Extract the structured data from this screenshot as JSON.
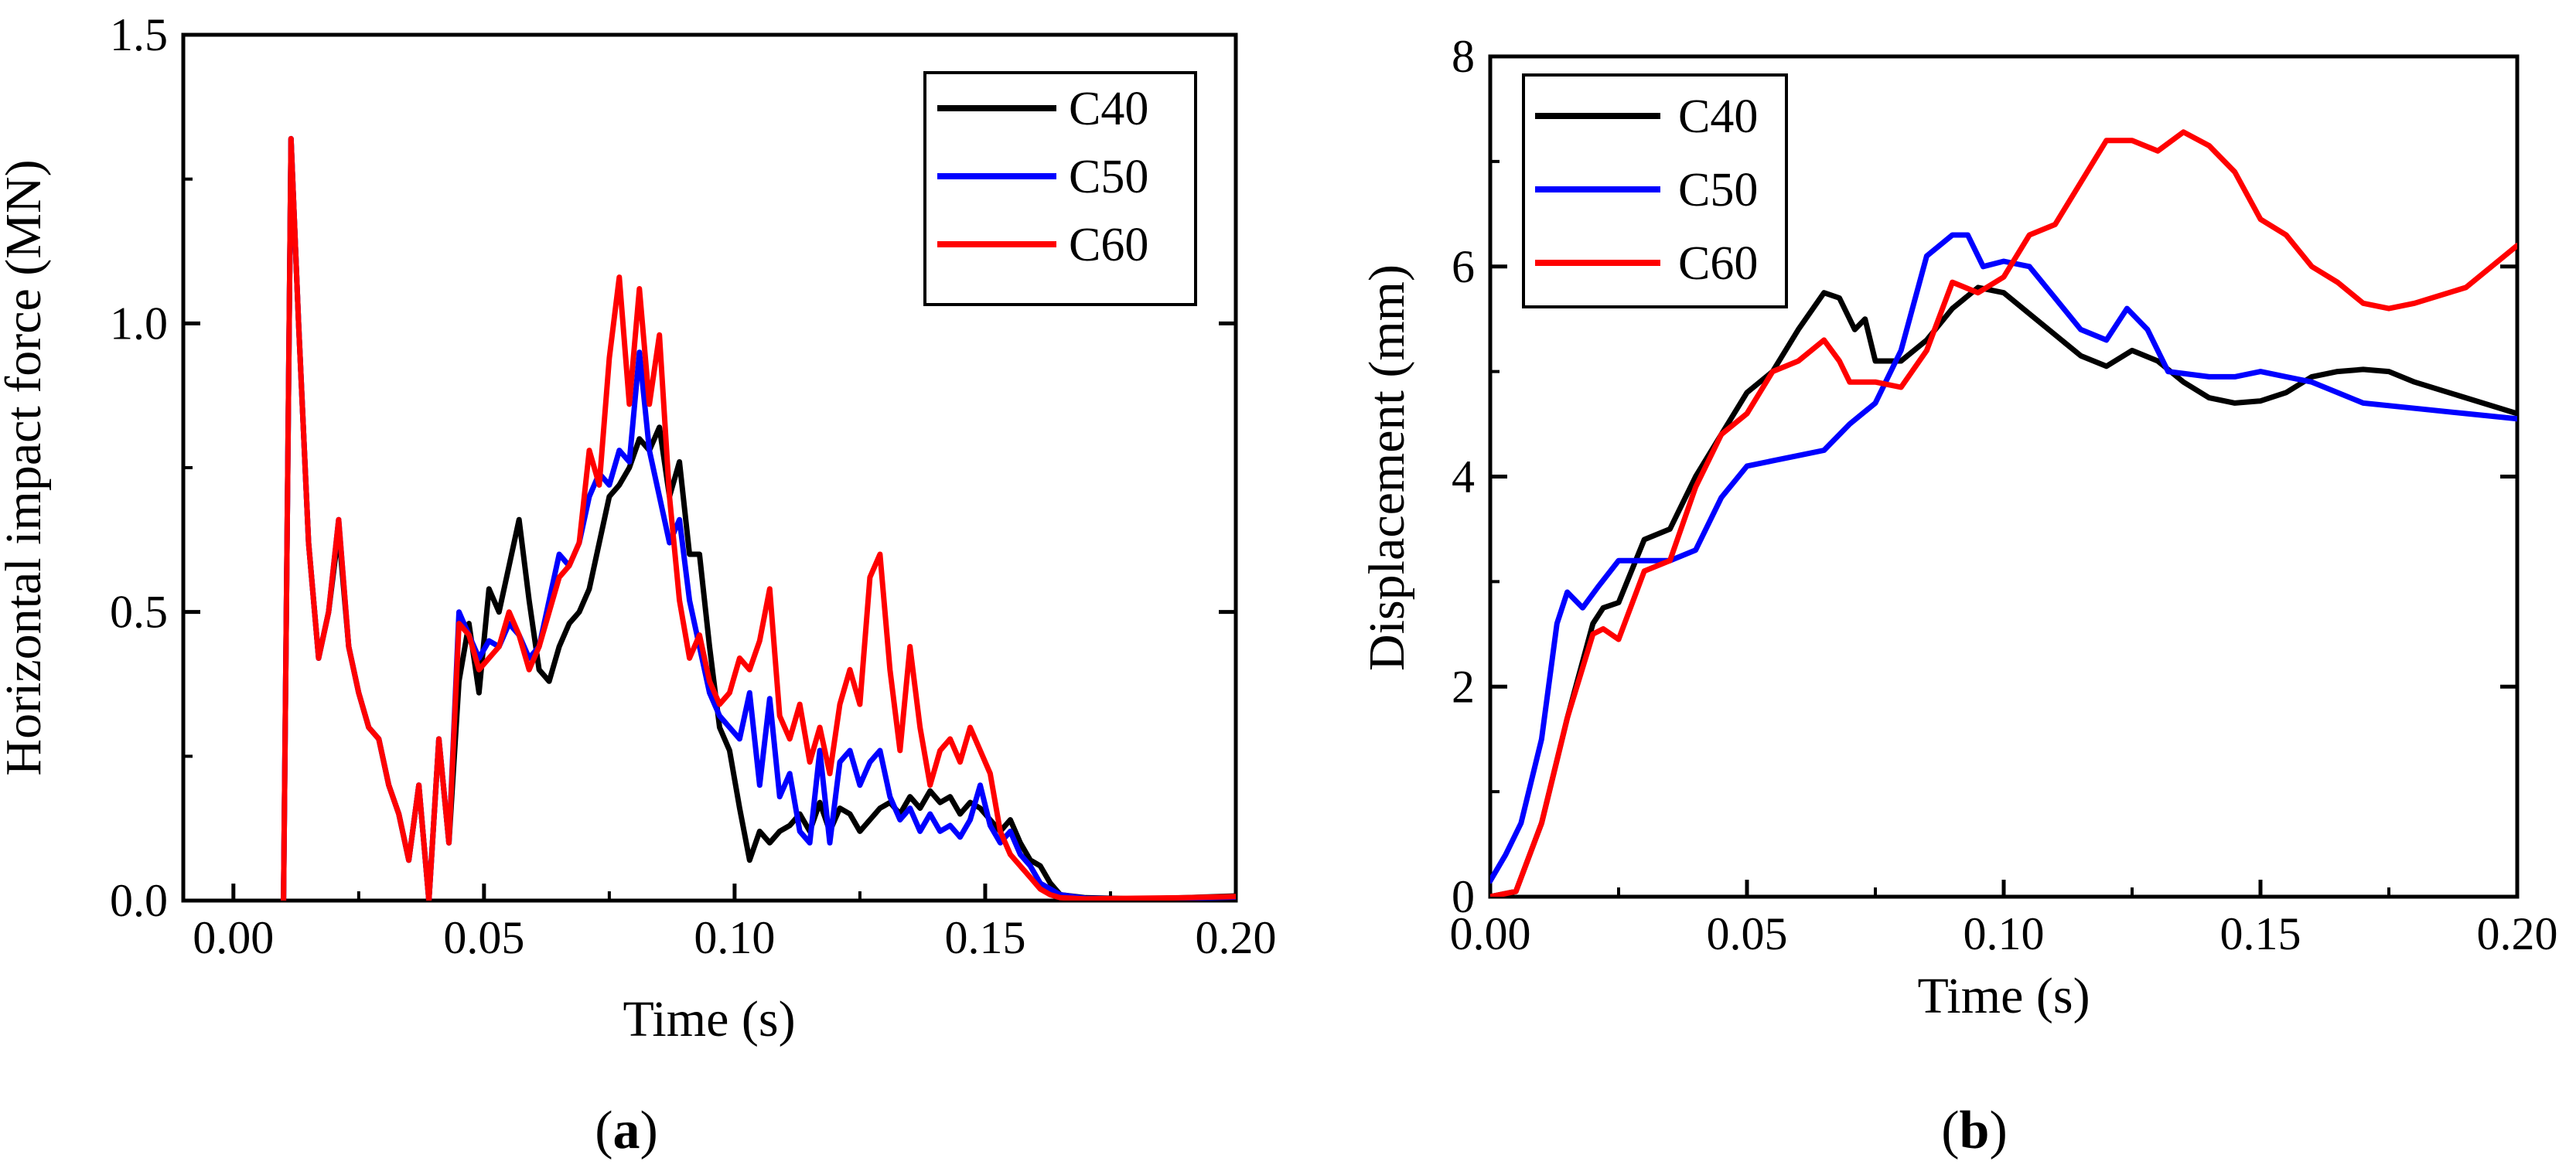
{
  "colors": {
    "C40": "#000000",
    "C50": "#0000ff",
    "C60": "#ff0000"
  },
  "chart_data": [
    {
      "type": "line",
      "panel_label": "(a)",
      "panel_letter": "a",
      "xlabel": "Time (s)",
      "ylabel": "Horizontal impact force (MN)",
      "xlim": [
        -0.01,
        0.2
      ],
      "ylim": [
        0,
        1.5
      ],
      "xticks": [
        "0.00",
        "0.05",
        "0.10",
        "0.15",
        "0.20"
      ],
      "yticks": [
        "0.0",
        "0.5",
        "1.0",
        "1.5"
      ],
      "grid": false,
      "legend_position": "top-right",
      "series": [
        {
          "name": "C40",
          "x": [
            0.01,
            0.0115,
            0.013,
            0.015,
            0.017,
            0.019,
            0.021,
            0.023,
            0.025,
            0.027,
            0.029,
            0.031,
            0.033,
            0.035,
            0.037,
            0.039,
            0.041,
            0.043,
            0.045,
            0.047,
            0.049,
            0.051,
            0.053,
            0.055,
            0.057,
            0.059,
            0.061,
            0.063,
            0.065,
            0.067,
            0.069,
            0.071,
            0.073,
            0.075,
            0.077,
            0.079,
            0.081,
            0.083,
            0.085,
            0.087,
            0.089,
            0.091,
            0.093,
            0.095,
            0.097,
            0.099,
            0.101,
            0.103,
            0.105,
            0.107,
            0.109,
            0.111,
            0.113,
            0.115,
            0.117,
            0.119,
            0.121,
            0.123,
            0.125,
            0.127,
            0.129,
            0.131,
            0.133,
            0.135,
            0.137,
            0.139,
            0.141,
            0.143,
            0.145,
            0.147,
            0.149,
            0.151,
            0.153,
            0.155,
            0.157,
            0.159,
            0.161,
            0.163,
            0.165,
            0.17,
            0.18,
            0.19,
            0.2
          ],
          "y": [
            0,
            1.32,
            1.0,
            0.62,
            0.42,
            0.5,
            0.64,
            0.44,
            0.36,
            0.3,
            0.28,
            0.2,
            0.15,
            0.07,
            0.2,
            0.0,
            0.28,
            0.1,
            0.38,
            0.48,
            0.36,
            0.54,
            0.5,
            0.58,
            0.66,
            0.52,
            0.4,
            0.38,
            0.44,
            0.48,
            0.5,
            0.54,
            0.62,
            0.7,
            0.72,
            0.75,
            0.8,
            0.78,
            0.82,
            0.7,
            0.76,
            0.6,
            0.6,
            0.44,
            0.3,
            0.26,
            0.16,
            0.07,
            0.12,
            0.1,
            0.12,
            0.13,
            0.15,
            0.12,
            0.17,
            0.12,
            0.16,
            0.15,
            0.12,
            0.14,
            0.16,
            0.17,
            0.15,
            0.18,
            0.16,
            0.19,
            0.17,
            0.18,
            0.15,
            0.17,
            0.16,
            0.14,
            0.12,
            0.14,
            0.1,
            0.07,
            0.06,
            0.03,
            0.01,
            0.005,
            0.003,
            0.005,
            0.008
          ]
        },
        {
          "name": "C50",
          "x": [
            0.01,
            0.0115,
            0.013,
            0.015,
            0.017,
            0.019,
            0.021,
            0.023,
            0.025,
            0.027,
            0.029,
            0.031,
            0.033,
            0.035,
            0.037,
            0.039,
            0.041,
            0.043,
            0.045,
            0.047,
            0.049,
            0.051,
            0.053,
            0.055,
            0.057,
            0.059,
            0.061,
            0.063,
            0.065,
            0.067,
            0.069,
            0.071,
            0.073,
            0.075,
            0.077,
            0.079,
            0.081,
            0.083,
            0.085,
            0.087,
            0.089,
            0.091,
            0.093,
            0.095,
            0.097,
            0.099,
            0.101,
            0.103,
            0.105,
            0.107,
            0.109,
            0.111,
            0.113,
            0.115,
            0.117,
            0.119,
            0.121,
            0.123,
            0.125,
            0.127,
            0.129,
            0.131,
            0.133,
            0.135,
            0.137,
            0.139,
            0.141,
            0.143,
            0.145,
            0.147,
            0.149,
            0.151,
            0.153,
            0.155,
            0.157,
            0.159,
            0.161,
            0.163,
            0.165,
            0.17,
            0.18,
            0.19,
            0.2
          ],
          "y": [
            0,
            1.32,
            1.0,
            0.62,
            0.42,
            0.5,
            0.66,
            0.44,
            0.36,
            0.3,
            0.28,
            0.2,
            0.15,
            0.07,
            0.2,
            0.0,
            0.28,
            0.1,
            0.5,
            0.46,
            0.42,
            0.45,
            0.44,
            0.48,
            0.46,
            0.42,
            0.44,
            0.52,
            0.6,
            0.58,
            0.62,
            0.7,
            0.74,
            0.72,
            0.78,
            0.76,
            0.95,
            0.78,
            0.7,
            0.62,
            0.66,
            0.52,
            0.44,
            0.36,
            0.32,
            0.3,
            0.28,
            0.36,
            0.2,
            0.35,
            0.18,
            0.22,
            0.12,
            0.1,
            0.26,
            0.1,
            0.24,
            0.26,
            0.2,
            0.24,
            0.26,
            0.18,
            0.14,
            0.16,
            0.12,
            0.15,
            0.12,
            0.13,
            0.11,
            0.14,
            0.2,
            0.13,
            0.1,
            0.12,
            0.08,
            0.06,
            0.03,
            0.02,
            0.01,
            0.004,
            0.003,
            0.004,
            0.006
          ]
        },
        {
          "name": "C60",
          "x": [
            0.01,
            0.0115,
            0.013,
            0.015,
            0.017,
            0.019,
            0.021,
            0.023,
            0.025,
            0.027,
            0.029,
            0.031,
            0.033,
            0.035,
            0.037,
            0.039,
            0.041,
            0.043,
            0.045,
            0.047,
            0.049,
            0.051,
            0.053,
            0.055,
            0.057,
            0.059,
            0.061,
            0.063,
            0.065,
            0.067,
            0.069,
            0.071,
            0.073,
            0.075,
            0.077,
            0.079,
            0.081,
            0.083,
            0.085,
            0.087,
            0.089,
            0.091,
            0.093,
            0.095,
            0.097,
            0.099,
            0.101,
            0.103,
            0.105,
            0.107,
            0.109,
            0.111,
            0.113,
            0.115,
            0.117,
            0.119,
            0.121,
            0.123,
            0.125,
            0.127,
            0.129,
            0.131,
            0.133,
            0.135,
            0.137,
            0.139,
            0.141,
            0.143,
            0.145,
            0.147,
            0.149,
            0.151,
            0.153,
            0.155,
            0.157,
            0.159,
            0.161,
            0.163,
            0.165,
            0.17,
            0.18,
            0.19,
            0.2
          ],
          "y": [
            0,
            1.32,
            1.0,
            0.62,
            0.42,
            0.5,
            0.66,
            0.44,
            0.36,
            0.3,
            0.28,
            0.2,
            0.15,
            0.07,
            0.2,
            0.0,
            0.28,
            0.1,
            0.48,
            0.46,
            0.4,
            0.42,
            0.44,
            0.5,
            0.46,
            0.4,
            0.44,
            0.5,
            0.56,
            0.58,
            0.62,
            0.78,
            0.72,
            0.94,
            1.08,
            0.86,
            1.06,
            0.86,
            0.98,
            0.7,
            0.52,
            0.42,
            0.46,
            0.38,
            0.34,
            0.36,
            0.42,
            0.4,
            0.45,
            0.54,
            0.32,
            0.28,
            0.34,
            0.24,
            0.3,
            0.22,
            0.34,
            0.4,
            0.34,
            0.56,
            0.6,
            0.4,
            0.26,
            0.44,
            0.3,
            0.2,
            0.26,
            0.28,
            0.24,
            0.3,
            0.26,
            0.22,
            0.12,
            0.08,
            0.06,
            0.04,
            0.02,
            0.01,
            0.005,
            0.003,
            0.004,
            0.005,
            0.007
          ]
        }
      ]
    },
    {
      "type": "line",
      "panel_label": "(b)",
      "panel_letter": "b",
      "xlabel": "Time (s)",
      "ylabel": "Displacement (mm)",
      "xlim": [
        0,
        0.2
      ],
      "ylim": [
        0,
        8
      ],
      "xticks": [
        "0.00",
        "0.05",
        "0.10",
        "0.15",
        "0.20"
      ],
      "yticks": [
        "0",
        "2",
        "4",
        "6",
        "8"
      ],
      "grid": false,
      "legend_position": "top-left",
      "series": [
        {
          "name": "C40",
          "x": [
            0,
            0.005,
            0.01,
            0.015,
            0.02,
            0.022,
            0.025,
            0.03,
            0.035,
            0.04,
            0.045,
            0.05,
            0.055,
            0.06,
            0.065,
            0.068,
            0.071,
            0.073,
            0.075,
            0.08,
            0.085,
            0.09,
            0.095,
            0.1,
            0.105,
            0.11,
            0.115,
            0.12,
            0.125,
            0.13,
            0.135,
            0.14,
            0.145,
            0.15,
            0.155,
            0.16,
            0.165,
            0.17,
            0.175,
            0.18,
            0.19,
            0.2
          ],
          "y": [
            0,
            0.05,
            0.7,
            1.7,
            2.6,
            2.75,
            2.8,
            3.4,
            3.5,
            4.0,
            4.4,
            4.8,
            5.0,
            5.4,
            5.75,
            5.7,
            5.4,
            5.5,
            5.1,
            5.1,
            5.3,
            5.6,
            5.8,
            5.75,
            5.55,
            5.35,
            5.15,
            5.05,
            5.2,
            5.1,
            4.9,
            4.75,
            4.7,
            4.72,
            4.8,
            4.95,
            5.0,
            5.02,
            5.0,
            4.9,
            4.75,
            4.6
          ]
        },
        {
          "name": "C50",
          "x": [
            0,
            0.003,
            0.006,
            0.01,
            0.013,
            0.015,
            0.018,
            0.021,
            0.025,
            0.03,
            0.035,
            0.04,
            0.045,
            0.05,
            0.055,
            0.06,
            0.065,
            0.07,
            0.075,
            0.08,
            0.085,
            0.09,
            0.093,
            0.096,
            0.1,
            0.105,
            0.11,
            0.115,
            0.12,
            0.124,
            0.128,
            0.132,
            0.14,
            0.145,
            0.15,
            0.155,
            0.16,
            0.17,
            0.18,
            0.19,
            0.2
          ],
          "y": [
            0.15,
            0.4,
            0.7,
            1.5,
            2.6,
            2.9,
            2.75,
            2.95,
            3.2,
            3.2,
            3.2,
            3.3,
            3.8,
            4.1,
            4.15,
            4.2,
            4.25,
            4.5,
            4.7,
            5.2,
            6.1,
            6.3,
            6.3,
            6.0,
            6.05,
            6.0,
            5.7,
            5.4,
            5.3,
            5.6,
            5.4,
            5.0,
            4.95,
            4.95,
            5.0,
            4.95,
            4.9,
            4.7,
            4.65,
            4.6,
            4.55
          ]
        },
        {
          "name": "C60",
          "x": [
            0,
            0.005,
            0.01,
            0.015,
            0.02,
            0.022,
            0.025,
            0.03,
            0.035,
            0.04,
            0.045,
            0.05,
            0.055,
            0.06,
            0.065,
            0.068,
            0.07,
            0.075,
            0.08,
            0.085,
            0.09,
            0.095,
            0.1,
            0.105,
            0.11,
            0.115,
            0.12,
            0.125,
            0.13,
            0.135,
            0.14,
            0.145,
            0.15,
            0.155,
            0.16,
            0.165,
            0.17,
            0.175,
            0.18,
            0.19,
            0.2
          ],
          "y": [
            0,
            0.05,
            0.7,
            1.7,
            2.5,
            2.55,
            2.45,
            3.1,
            3.2,
            3.9,
            4.4,
            4.6,
            5.0,
            5.1,
            5.3,
            5.1,
            4.9,
            4.9,
            4.85,
            5.2,
            5.85,
            5.75,
            5.9,
            6.3,
            6.4,
            6.8,
            7.2,
            7.2,
            7.1,
            7.28,
            7.15,
            6.9,
            6.45,
            6.3,
            6.0,
            5.85,
            5.65,
            5.6,
            5.65,
            5.8,
            6.2
          ]
        }
      ]
    }
  ]
}
